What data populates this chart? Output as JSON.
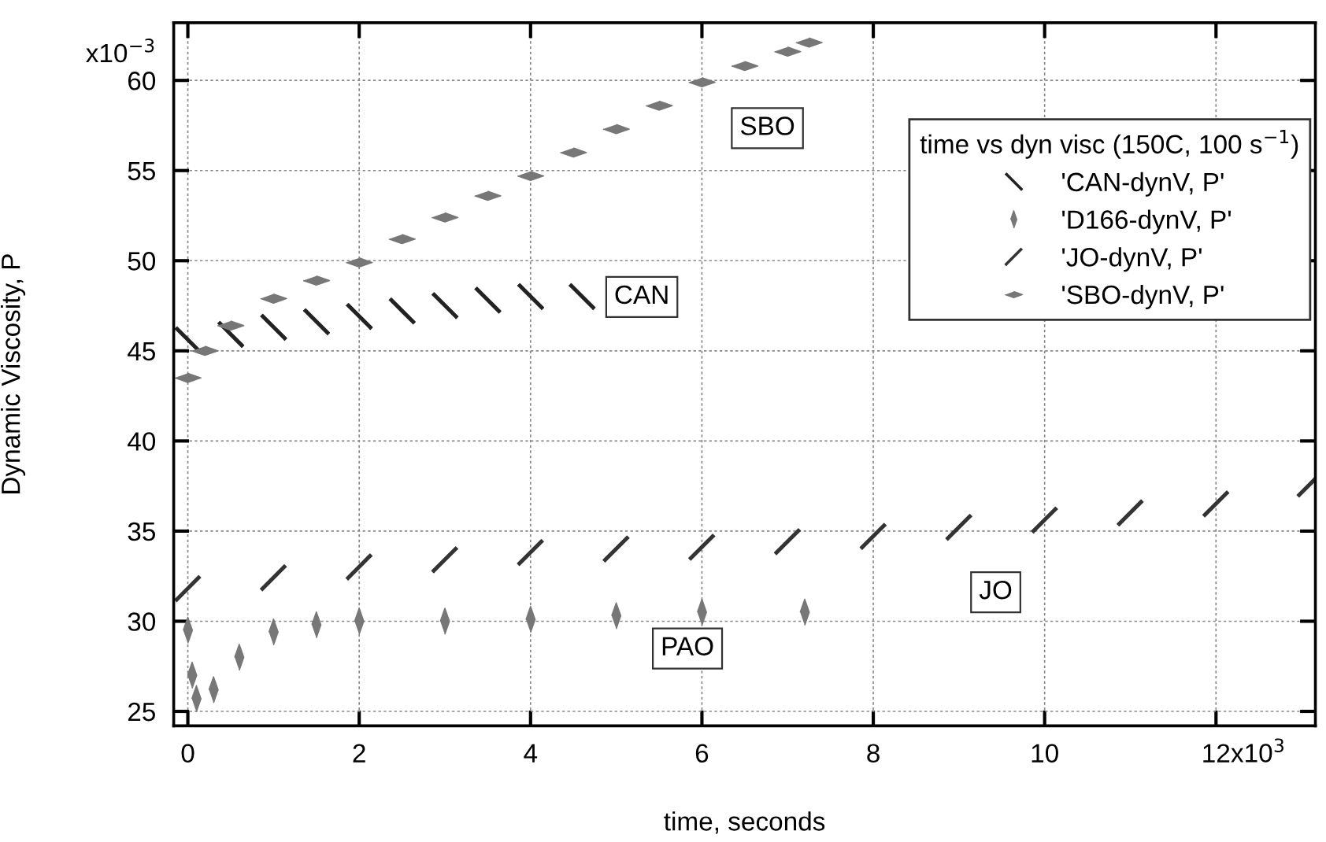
{
  "chart_data": {
    "type": "scatter",
    "xlabel": "time, seconds",
    "ylabel": "Dynamic Viscosity, P",
    "legend_title": "time vs dyn visc (150C, 100 s$^{−1}$)",
    "series": [
      {
        "name": "'CAN-dynV, P'",
        "color": "#222222",
        "x": [
          0,
          0.5,
          1,
          1.5,
          2,
          2.5,
          3,
          3.5,
          4,
          4.6
        ],
        "values": [
          45.6,
          45.9,
          46.3,
          46.6,
          46.9,
          47.2,
          47.5,
          47.8,
          48.0,
          48.0
        ]
      },
      {
        "name": "'D166-dynV, P'",
        "color": "#777777",
        "x": [
          0,
          0.05,
          0.1,
          0.3,
          0.6,
          1,
          1.5,
          2,
          3,
          4,
          5,
          6,
          7.2
        ],
        "values": [
          29.5,
          27.0,
          25.7,
          26.2,
          28.0,
          29.4,
          29.8,
          30.0,
          30.0,
          30.1,
          30.3,
          30.5,
          30.5
        ]
      },
      {
        "name": "'JO-dynV, P'",
        "color": "#333333",
        "x": [
          0,
          1,
          2,
          3,
          4,
          5,
          6,
          7,
          8,
          9,
          10,
          11,
          12,
          13.1
        ],
        "values": [
          31.8,
          32.4,
          33.0,
          33.4,
          33.8,
          34.0,
          34.1,
          34.4,
          34.7,
          35.2,
          35.6,
          36.0,
          36.5,
          37.6
        ]
      },
      {
        "name": "'SBO-dynV, P'",
        "color": "#777777",
        "x": [
          0,
          0.2,
          0.5,
          1,
          1.5,
          2,
          2.5,
          3,
          3.5,
          4,
          4.5,
          5,
          5.5,
          6,
          6.5,
          7,
          7.25
        ],
        "values": [
          43.5,
          45.0,
          46.4,
          47.9,
          48.9,
          49.9,
          51.2,
          52.4,
          53.6,
          54.7,
          56.0,
          57.3,
          58.6,
          59.9,
          60.8,
          61.6,
          62.1
        ]
      }
    ],
    "annotations": [
      "SBO",
      "CAN",
      "JO",
      "PAO",
      "x10$^{3}$",
      "x10$^{−3}$"
    ],
    "xlim": [
      -0.165,
      13.16
    ],
    "ylim": [
      24.2,
      63.2
    ],
    "xticks": [
      0,
      2,
      4,
      6,
      8,
      10,
      12
    ],
    "yticks": [
      25,
      30,
      35,
      40,
      45,
      50,
      55,
      60
    ],
    "grid": true,
    "legend": "top right"
  }
}
